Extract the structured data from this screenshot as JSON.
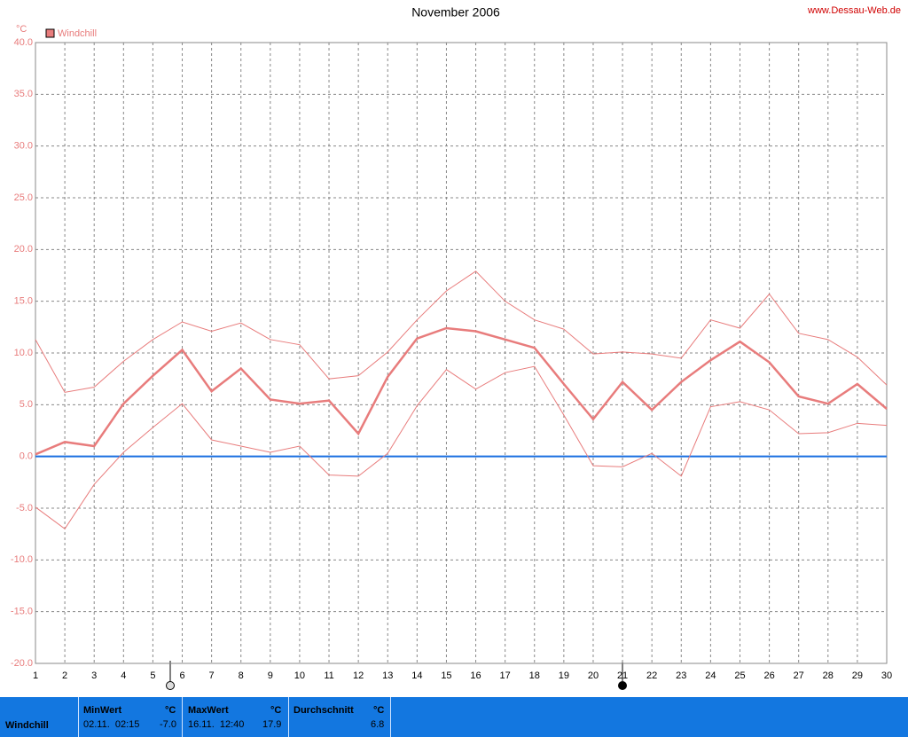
{
  "chart_data": {
    "type": "line",
    "title": "November 2006",
    "source": "www.Dessau-Web.de",
    "y_unit": "°C",
    "x": [
      1,
      2,
      3,
      4,
      5,
      6,
      7,
      8,
      9,
      10,
      11,
      12,
      13,
      14,
      15,
      16,
      17,
      18,
      19,
      20,
      21,
      22,
      23,
      24,
      25,
      26,
      27,
      28,
      29,
      30
    ],
    "xlim": [
      1,
      30
    ],
    "xticks": [
      1,
      2,
      3,
      4,
      5,
      6,
      7,
      8,
      9,
      10,
      11,
      12,
      13,
      14,
      15,
      16,
      17,
      18,
      19,
      20,
      21,
      22,
      23,
      24,
      25,
      26,
      27,
      28,
      29,
      30
    ],
    "ylim": [
      -20,
      40
    ],
    "yticks": [
      {
        "value": 40,
        "label": "40.0"
      },
      {
        "value": 35,
        "label": "35.0"
      },
      {
        "value": 30,
        "label": "30.0"
      },
      {
        "value": 25,
        "label": "25.0"
      },
      {
        "value": 20,
        "label": "20.0"
      },
      {
        "value": 15,
        "label": "15.0"
      },
      {
        "value": 10,
        "label": "10.0"
      },
      {
        "value": 5,
        "label": "5.0"
      },
      {
        "value": 0,
        "label": "0.0"
      },
      {
        "value": -5,
        "label": "-5.0"
      },
      {
        "value": -10,
        "label": "-10.0"
      },
      {
        "value": -15,
        "label": "-15.0"
      },
      {
        "value": -20,
        "label": "-20.0"
      }
    ],
    "grid": true,
    "reference_line": {
      "value": 0,
      "color": "#1a6fe0"
    },
    "series": [
      {
        "name": "Windchill",
        "color": "#e87c7c",
        "values": [
          0.2,
          1.4,
          1.0,
          5.1,
          7.8,
          10.3,
          6.3,
          8.5,
          5.5,
          5.1,
          5.4,
          2.2,
          7.7,
          11.4,
          12.4,
          12.1,
          11.3,
          10.5,
          7.0,
          3.6,
          7.2,
          4.5,
          7.2,
          9.3,
          11.1,
          9.1,
          5.8,
          5.1,
          7.0,
          4.6
        ]
      },
      {
        "color": "#e87c7c",
        "values": [
          11.3,
          6.2,
          6.7,
          9.2,
          11.3,
          13.0,
          12.1,
          12.9,
          11.3,
          10.8,
          7.5,
          7.8,
          10.1,
          13.2,
          16.0,
          17.9,
          15.0,
          13.2,
          12.3,
          9.9,
          10.1,
          9.9,
          9.5,
          13.2,
          12.4,
          15.7,
          11.9,
          11.3,
          9.6,
          6.9
        ]
      },
      {
        "color": "#e87c7c",
        "values": [
          -4.9,
          -7.0,
          -2.7,
          0.4,
          2.8,
          5.1,
          1.6,
          1.0,
          0.4,
          1.0,
          -1.8,
          -1.9,
          0.3,
          4.9,
          8.4,
          6.5,
          8.1,
          8.7,
          4.0,
          -0.9,
          -1.0,
          0.3,
          -1.9,
          4.8,
          5.3,
          4.5,
          2.2,
          2.3,
          3.2,
          3.0
        ]
      }
    ]
  },
  "table": {
    "row_label": "Windchill",
    "columns": [
      {
        "header": "MinWert",
        "unit": "°C",
        "date": "02.11.  02:15",
        "value": "-7.0"
      },
      {
        "header": "MaxWert",
        "unit": "°C",
        "date": "16.11.  12:40",
        "value": "17.9"
      },
      {
        "header": "Durchschnitt",
        "unit": "°C",
        "value": "6.8"
      }
    ]
  }
}
